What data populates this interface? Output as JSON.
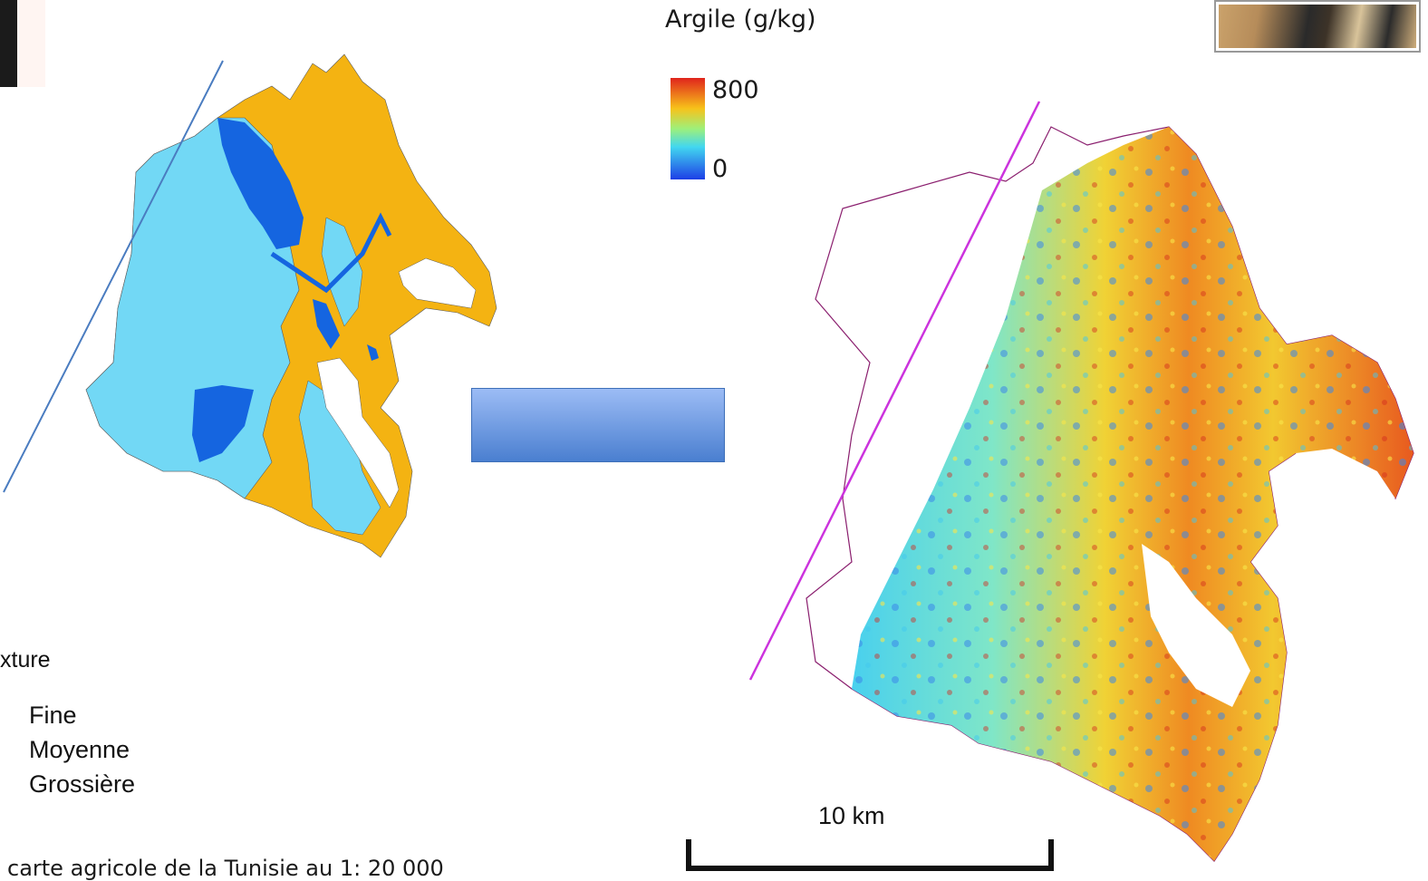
{
  "colorbar": {
    "title": "Argile (g/kg)",
    "max_label": "800",
    "min_label": "0",
    "colors": [
      "#e0241c",
      "#f7c21a",
      "#9ef07a",
      "#42d7f0",
      "#1d3fe6"
    ]
  },
  "legend": {
    "title_fragment": "xture",
    "items": [
      {
        "label": "Fine",
        "color": "#1565e0"
      },
      {
        "label": "Moyenne",
        "color": "#f4b312"
      },
      {
        "label": "Grossière",
        "color": "#72d8f5"
      }
    ]
  },
  "scale_bar": {
    "label": "10 km"
  },
  "source_note": "carte agricole de la Tunisie au 1: 20 000",
  "colors": {
    "fine": "#1565e0",
    "moyenne": "#f4b312",
    "grossiere": "#72d8f5",
    "arrow": "#5b8fe0",
    "right_line": "#cc33dd",
    "left_line": "#4a7cc0"
  }
}
